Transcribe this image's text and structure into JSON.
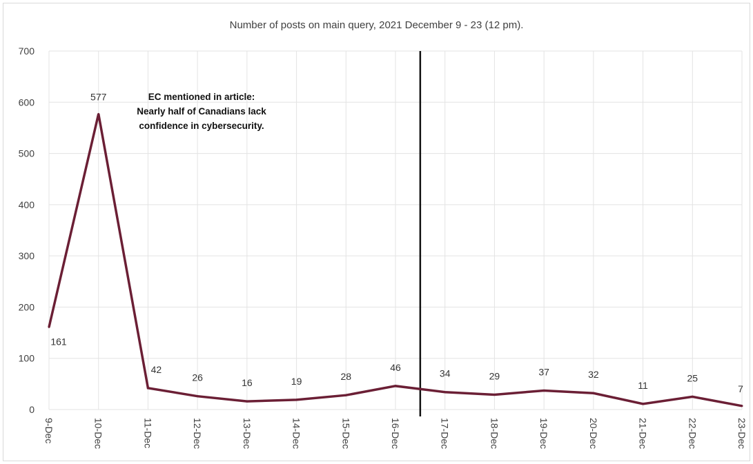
{
  "chart_data": {
    "type": "line",
    "title": "Number of posts on main query, 2021 December 9 - 23 (12 pm).",
    "categories": [
      "9-Dec",
      "10-Dec",
      "11-Dec",
      "12-Dec",
      "13-Dec",
      "14-Dec",
      "15-Dec",
      "16-Dec",
      "17-Dec",
      "18-Dec",
      "19-Dec",
      "20-Dec",
      "21-Dec",
      "22-Dec",
      "23-Dec"
    ],
    "series": [
      {
        "values": [
          161,
          577,
          42,
          26,
          16,
          19,
          28,
          46,
          34,
          29,
          37,
          32,
          11,
          25,
          7
        ]
      }
    ],
    "data_labels": [
      "161",
      "577",
      "42",
      "26",
      "16",
      "19",
      "28",
      "46",
      "34",
      "29",
      "37",
      "32",
      "11",
      "25",
      "7"
    ],
    "y_ticks": [
      "0",
      "100",
      "200",
      "300",
      "400",
      "500",
      "600",
      "700"
    ],
    "ylim": [
      0,
      700
    ],
    "xlabel": "",
    "ylabel": "",
    "grid": true,
    "annotation": {
      "lines": [
        "EC mentioned in article:",
        "Nearly half of Canadians lack",
        "confidence in cybersecurity."
      ]
    },
    "marker_line_between": [
      "16-Dec",
      "17-Dec"
    ],
    "colors": {
      "line": "#6b1f35",
      "grid": "#e3e3e3",
      "marker": "#111111",
      "text": "#404040"
    }
  }
}
